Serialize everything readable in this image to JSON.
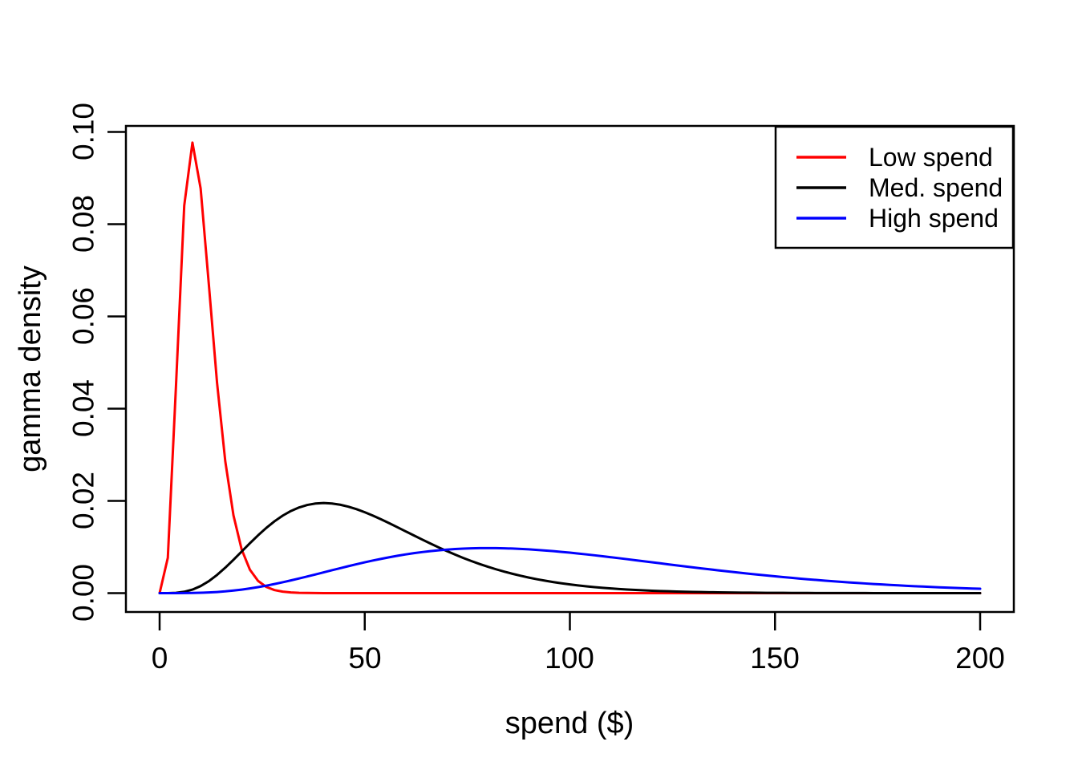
{
  "figure": {
    "background": "#FFFFFF",
    "frame_color": "#000000"
  },
  "chart_data": {
    "type": "line",
    "title": "",
    "xlabel": "spend ($)",
    "ylabel": "gamma density",
    "xlim": [
      0,
      200
    ],
    "ylim": [
      0,
      0.1
    ],
    "grid": false,
    "frame": true,
    "x_tick_values": [
      0,
      50,
      100,
      150,
      200
    ],
    "x_tick_labels": [
      "0",
      "50",
      "100",
      "150",
      "200"
    ],
    "y_tick_values": [
      0,
      0.02,
      0.04,
      0.06,
      0.08,
      0.1
    ],
    "y_tick_labels": [
      "0.00",
      "0.02",
      "0.04",
      "0.06",
      "0.08",
      "0.10"
    ],
    "legend": {
      "position": "topright"
    },
    "sampling": {
      "x_start": 0,
      "x_end": 200,
      "x_step": 2
    },
    "sample_x": [
      0,
      10,
      20,
      30,
      40,
      50,
      60,
      70,
      80,
      90,
      100,
      110,
      120,
      130,
      140,
      150,
      160,
      170,
      180,
      190,
      200
    ],
    "series": [
      {
        "name": "Low spend",
        "color": "#FF0000",
        "distribution": "gamma",
        "shape": 5,
        "scale": 2,
        "mean": 10,
        "mode": 8,
        "peak_density": 0.0977,
        "sample_density": [
          0,
          0.08773,
          0.00946,
          0.00032,
          1e-05,
          0,
          0,
          0,
          0,
          0,
          0,
          0,
          0,
          0,
          0,
          0,
          0,
          0,
          0,
          0,
          0
        ]
      },
      {
        "name": "Med. spend",
        "color": "#000000",
        "distribution": "gamma",
        "shape": 5,
        "scale": 10,
        "mean": 50,
        "mode": 40,
        "peak_density": 0.0195,
        "sample_density": [
          0,
          0.00153,
          0.00902,
          0.0168,
          0.01954,
          0.01755,
          0.01339,
          0.00912,
          0.00573,
          0.00338,
          0.00189,
          0.00102,
          0.00053,
          0.00027,
          0.00013,
          6e-05,
          3e-05,
          1e-05,
          1e-05,
          0,
          0
        ]
      },
      {
        "name": "High spend",
        "color": "#0000FF",
        "distribution": "gamma",
        "shape": 5,
        "scale": 20,
        "mean": 100,
        "mode": 80,
        "peak_density": 0.0098,
        "sample_density": [
          0,
          8e-05,
          0.00077,
          0.00235,
          0.00451,
          0.00668,
          0.0084,
          0.00944,
          0.00977,
          0.00949,
          0.00877,
          0.00779,
          0.00669,
          0.00558,
          0.00456,
          0.00365,
          0.00286,
          0.00221,
          0.00169,
          0.00127,
          0.00095
        ]
      }
    ]
  }
}
